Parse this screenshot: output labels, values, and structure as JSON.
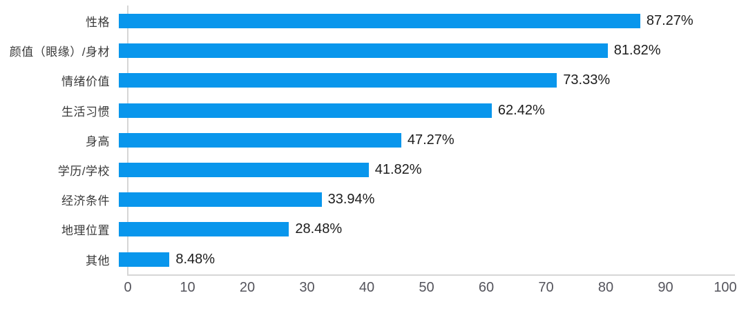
{
  "chart_data": {
    "type": "bar",
    "orientation": "horizontal",
    "title": "",
    "xlabel": "",
    "ylabel": "",
    "categories": [
      "性格",
      "颜值（眼缘）/身材",
      "情绪价值",
      "生活习惯",
      "身高",
      "学历/学校",
      "经济条件",
      "地理位置",
      "其他"
    ],
    "values": [
      87.27,
      81.82,
      73.33,
      62.42,
      47.27,
      41.82,
      33.94,
      28.48,
      8.48
    ],
    "data_labels": [
      "87.27%",
      "81.82%",
      "73.33%",
      "62.42%",
      "47.27%",
      "41.82%",
      "33.94%",
      "28.48%",
      "8.48%"
    ],
    "x_ticks": [
      "0",
      "10",
      "20",
      "30",
      "40",
      "50",
      "60",
      "70",
      "80",
      "90",
      "100"
    ],
    "xlim": [
      0,
      100
    ],
    "grid": "off",
    "legend": "none"
  },
  "style": {
    "bar_color": "#0996ec",
    "axis_line_color": "#d6d6d6",
    "label_color": "#3a3a3a",
    "value_color": "#1c1c1c",
    "tick_color": "#54545c",
    "background": "#ffffff"
  }
}
